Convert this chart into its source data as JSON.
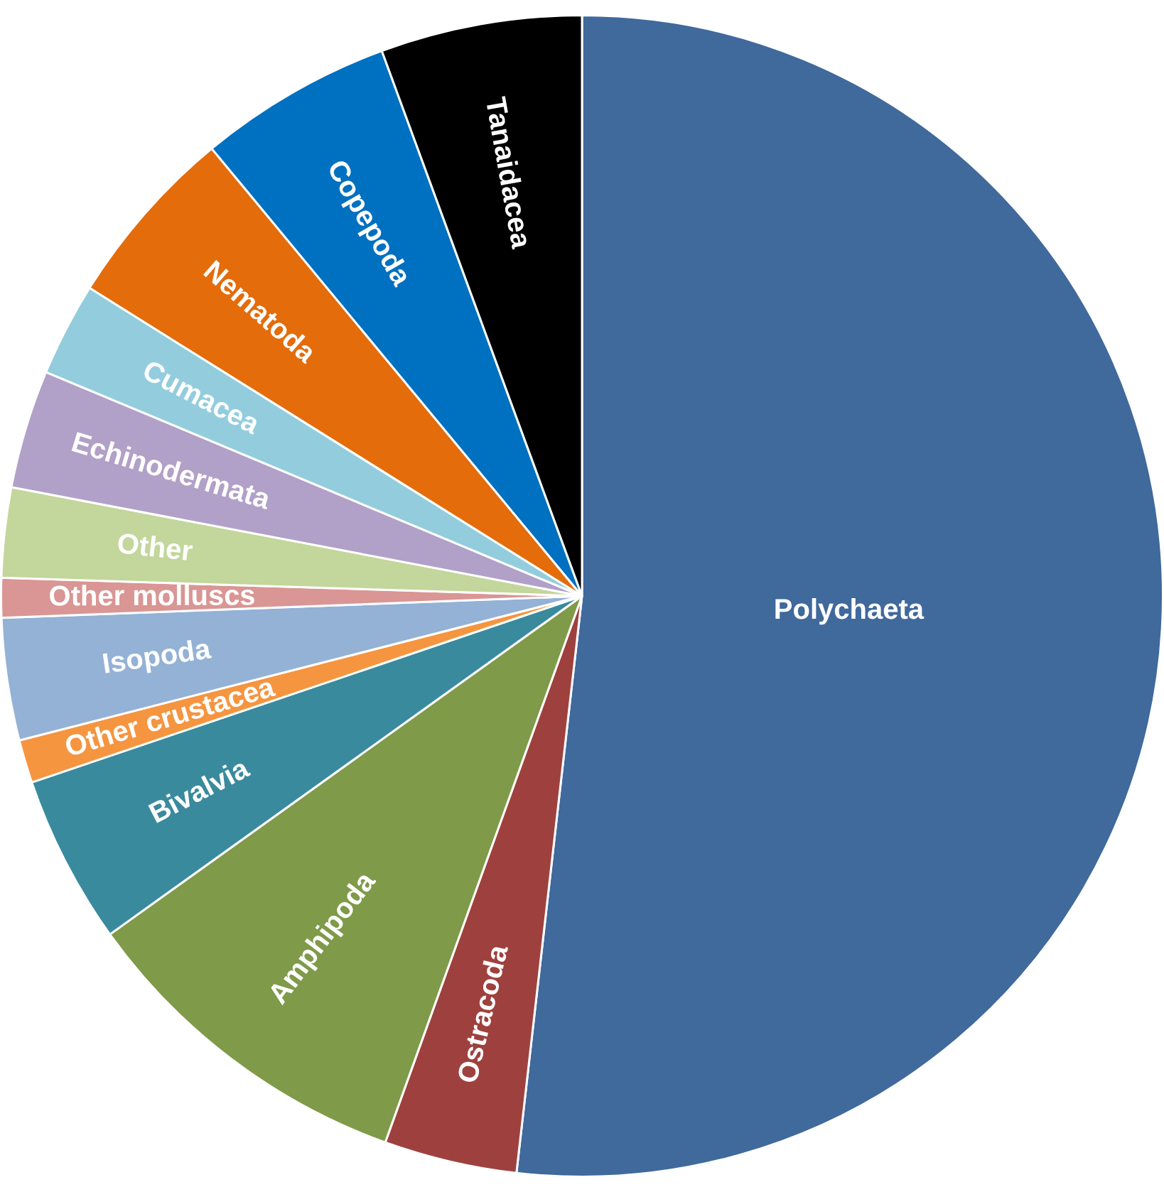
{
  "chart_data": {
    "type": "pie",
    "categories": [
      "Polychaeta",
      "Ostracoda",
      "Amphipoda",
      "Bivalvia",
      "Other crustacea",
      "Isopoda",
      "Other molluscs",
      "Other",
      "Echinodermata",
      "Cumacea",
      "Nematoda",
      "Copepoda",
      "Tanaidacea"
    ],
    "values": [
      51.8,
      3.7,
      9.6,
      4.7,
      1.2,
      3.4,
      1.1,
      2.5,
      3.3,
      2.6,
      5.1,
      5.4,
      5.6
    ],
    "colors": [
      "#40699c",
      "#9e413e",
      "#7f9a48",
      "#3a8a9e",
      "#f59540",
      "#94b1d6",
      "#d99694",
      "#c3d69b",
      "#b1a0c7",
      "#93cddd",
      "#e46c0a",
      "#0070c0",
      "#000000"
    ],
    "legend": false
  }
}
